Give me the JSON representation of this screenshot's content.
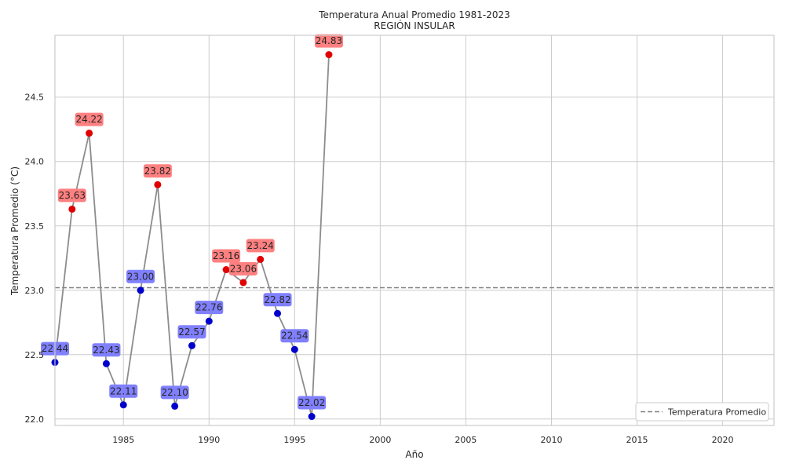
{
  "chart_data": {
    "type": "line",
    "title": "Temperatura Anual Promedio 1981-2023",
    "subtitle": "REGIÓN INSULAR",
    "xlabel": "Año",
    "ylabel": "Temperatura Promedio (°C)",
    "xlim": [
      1981,
      2023
    ],
    "ylim": [
      21.95,
      24.98
    ],
    "xticks": [
      1985,
      1990,
      1995,
      2000,
      2005,
      2010,
      2015,
      2020
    ],
    "yticks": [
      22.0,
      22.5,
      23.0,
      23.5,
      24.0,
      24.5
    ],
    "ytick_labels": [
      "22.0",
      "22.5",
      "23.0",
      "23.5",
      "24.0",
      "24.5"
    ],
    "grid": true,
    "series": [
      {
        "x": [
          1981,
          1982,
          1983,
          1984,
          1985,
          1986,
          1987,
          1988,
          1989,
          1990,
          1991,
          1992,
          1993,
          1994,
          1995,
          1996,
          1997
        ],
        "values": [
          22.44,
          23.63,
          24.22,
          22.43,
          22.11,
          23.0,
          23.82,
          22.1,
          22.57,
          22.76,
          23.16,
          23.06,
          23.24,
          22.82,
          22.54,
          22.02,
          24.83
        ],
        "labels": [
          "22.44",
          "23.63",
          "24.22",
          "22.43",
          "22.11",
          "23.00",
          "23.82",
          "22.10",
          "22.57",
          "22.76",
          "23.16",
          "23.06",
          "23.24",
          "22.82",
          "22.54",
          "22.02",
          "24.83"
        ],
        "line_color": "#8c8c8c",
        "above_color": "#e00000",
        "below_color": "#0000cc",
        "above_label_bg": "#ff8080",
        "below_label_bg": "#8080ff"
      }
    ],
    "reference_line": {
      "name": "Temperatura Promedio",
      "value": 23.02,
      "style": "dashed",
      "color": "#808080"
    },
    "legend": {
      "position": "lower-right",
      "entries": [
        "Temperatura Promedio"
      ]
    }
  }
}
